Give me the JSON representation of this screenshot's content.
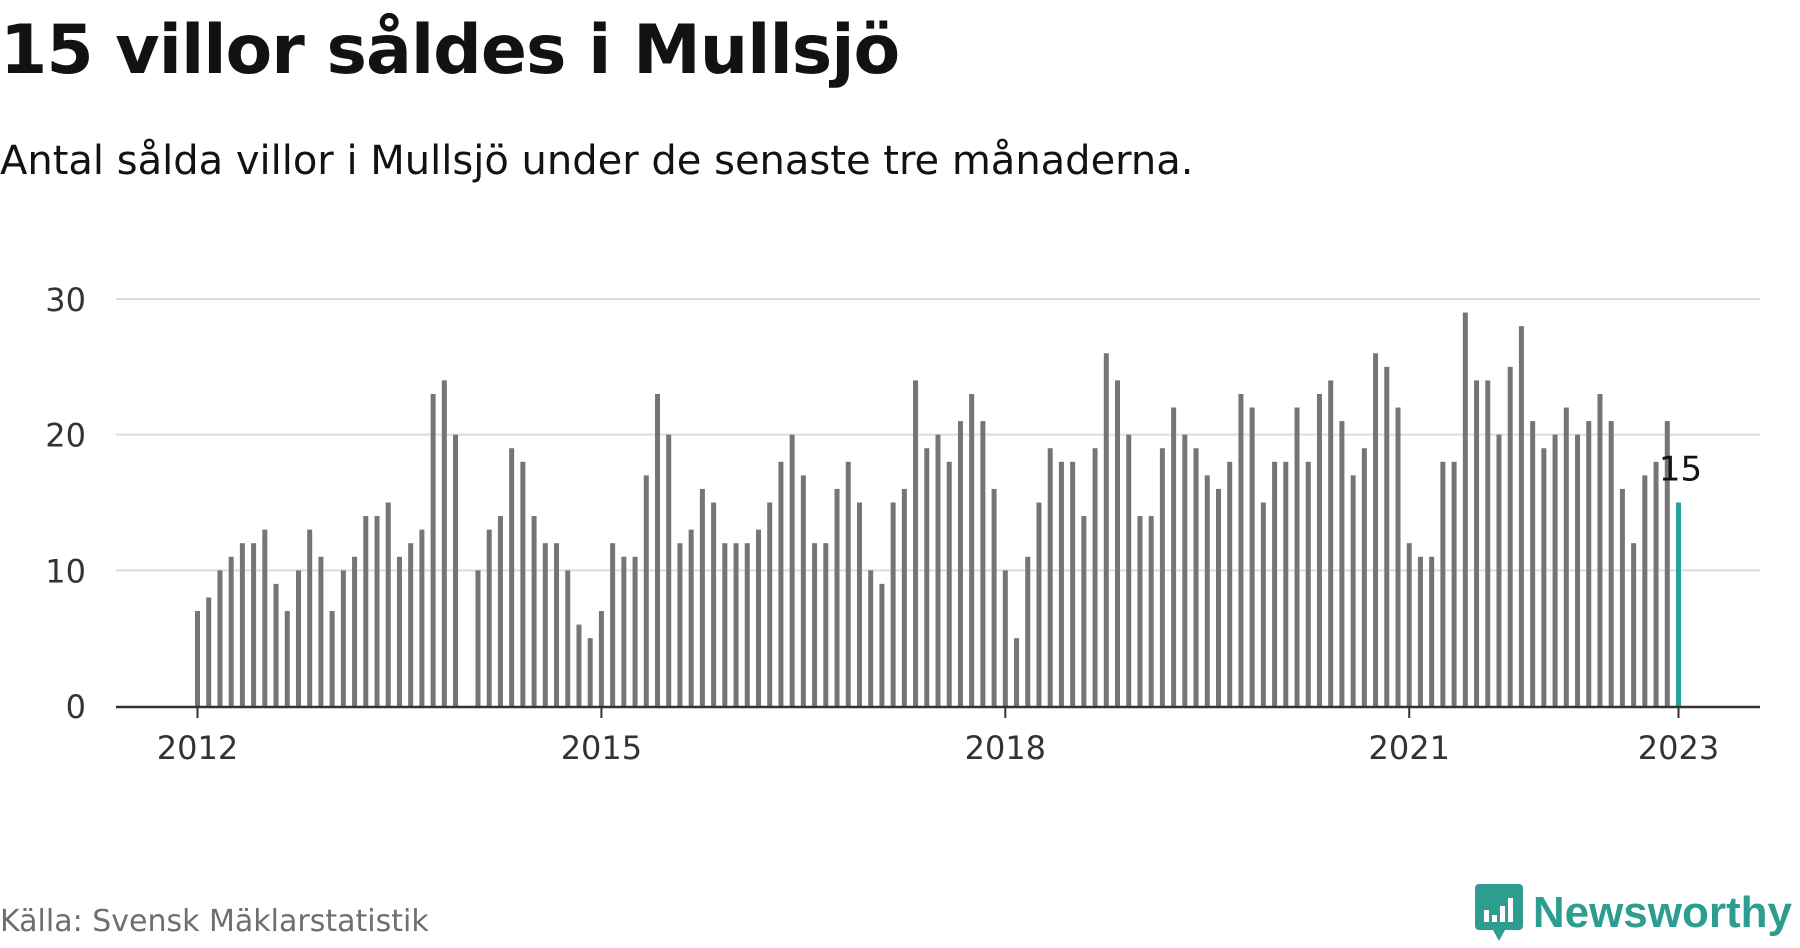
{
  "title": "15 villor såldes i Mullsjö",
  "subtitle": "Antal sålda villor i Mullsjö under de senaste tre månaderna.",
  "source": "Källa: Svensk Mäklarstatistik",
  "brand": "Newsworthy",
  "colors": {
    "bar": "#757575",
    "highlight": "#2aa198",
    "brand": "#2d9d8f",
    "grid": "#dddddd",
    "axis": "#333333"
  },
  "chart_data": {
    "type": "bar",
    "x_start": "2012-01",
    "x_end": "2023-01",
    "x_ticks": [
      "2012",
      "2015",
      "2018",
      "2021",
      "2023"
    ],
    "y_ticks": [
      "0",
      "10",
      "20",
      "30"
    ],
    "ylim": [
      0,
      30
    ],
    "grid": true,
    "highlight_label": "15",
    "series": [
      {
        "values": [
          7,
          8,
          10,
          11,
          12,
          12,
          13,
          9,
          7,
          10,
          13,
          11,
          7,
          10,
          11,
          14,
          14,
          15,
          11,
          12,
          13,
          23,
          24,
          20,
          null,
          10,
          13,
          14,
          19,
          18,
          14,
          12,
          12,
          10,
          6,
          5,
          7,
          12,
          11,
          11,
          17,
          23,
          20,
          12,
          13,
          16,
          15,
          12,
          12,
          12,
          13,
          15,
          18,
          20,
          17,
          12,
          12,
          16,
          18,
          15,
          10,
          9,
          15,
          16,
          24,
          19,
          20,
          18,
          21,
          23,
          21,
          16,
          10,
          5,
          11,
          15,
          19,
          18,
          18,
          14,
          19,
          26,
          24,
          20,
          14,
          14,
          19,
          22,
          20,
          19,
          17,
          16,
          18,
          23,
          22,
          15,
          18,
          18,
          22,
          18,
          23,
          24,
          21,
          17,
          19,
          26,
          25,
          22,
          12,
          11,
          11,
          18,
          18,
          29,
          24,
          24,
          20,
          25,
          28,
          21,
          19,
          20,
          22,
          20,
          21,
          23,
          21,
          16,
          12,
          17,
          18,
          21,
          15
        ]
      }
    ]
  }
}
